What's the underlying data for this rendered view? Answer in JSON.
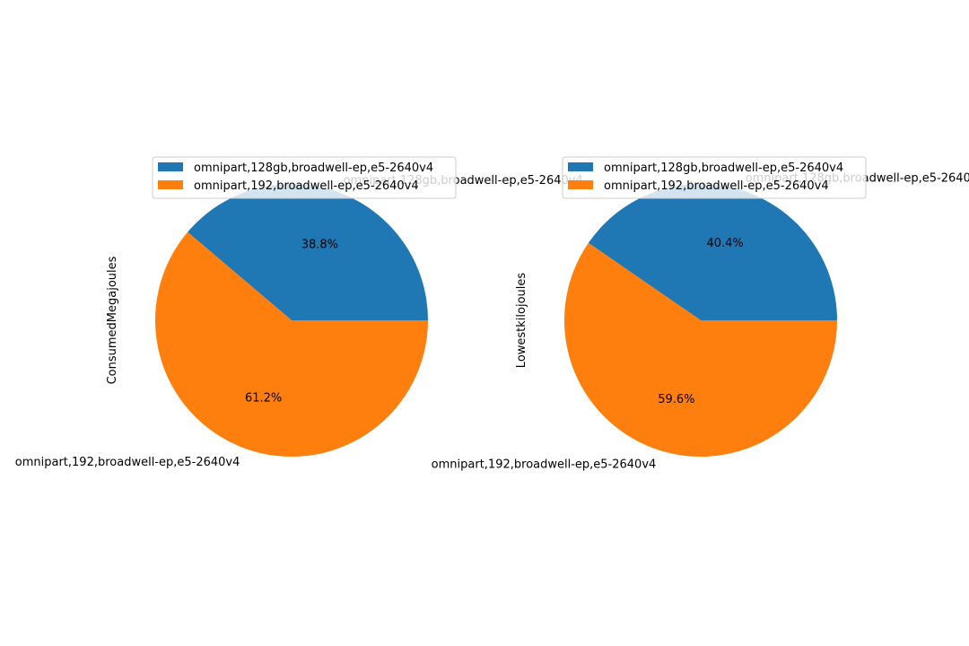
{
  "chart_data": [
    {
      "type": "pie",
      "ylabel": "ConsumedMegajoules",
      "categories": [
        "omnipart,128gb,broadwell-ep,e5-2640v4",
        "omnipart,192,broadwell-ep,e5-2640v4"
      ],
      "values": [
        38.8,
        61.2
      ],
      "pct_labels": [
        "38.8%",
        "61.2%"
      ],
      "colors": [
        "#1f77b4",
        "#ff7f0e"
      ],
      "legend": {
        "placement": "top-center",
        "entries": [
          "omnipart,128gb,broadwell-ep,e5-2640v4",
          "omnipart,192,broadwell-ep,e5-2640v4"
        ]
      }
    },
    {
      "type": "pie",
      "ylabel": "Lowestkilojoules",
      "categories": [
        "omnipart,128gb,broadwell-ep,e5-2640v4",
        "omnipart,192,broadwell-ep,e5-2640v4"
      ],
      "values": [
        40.4,
        59.6
      ],
      "pct_labels": [
        "40.4%",
        "59.6%"
      ],
      "colors": [
        "#1f77b4",
        "#ff7f0e"
      ],
      "legend": {
        "placement": "top-center",
        "entries": [
          "omnipart,128gb,broadwell-ep,e5-2640v4",
          "omnipart,192,broadwell-ep,e5-2640v4"
        ]
      }
    }
  ]
}
